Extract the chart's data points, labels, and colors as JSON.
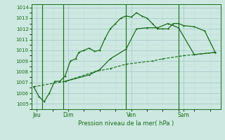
{
  "background_color": "#cce8e0",
  "grid_major_color": "#aacccc",
  "grid_minor_color": "#c0ddd8",
  "line_color": "#1a6b1a",
  "title": "Pression niveau de la mer( hPa )",
  "ylim": [
    1004.5,
    1014.3
  ],
  "yticks": [
    1005,
    1006,
    1007,
    1008,
    1009,
    1010,
    1011,
    1012,
    1013,
    1014
  ],
  "day_labels": [
    "Jeu",
    "Dim",
    "Ven",
    "Sam"
  ],
  "day_positions": [
    0.5,
    3.5,
    9.5,
    14.5
  ],
  "vline_positions": [
    1.0,
    3.0,
    9.0,
    14.0
  ],
  "xlim": [
    0,
    18
  ],
  "line1_x": [
    0.2,
    0.7,
    1.2,
    1.7,
    2.2,
    2.7,
    3.2,
    3.7,
    4.2,
    4.5,
    5.0,
    5.5,
    6.0,
    6.5,
    7.0,
    7.5,
    8.0,
    8.5,
    9.0,
    9.5,
    10.0,
    10.5,
    11.0,
    11.5,
    12.0,
    12.5,
    13.0,
    13.5,
    14.0,
    14.5,
    15.5,
    16.5,
    17.5
  ],
  "line1_y": [
    1006.6,
    1005.7,
    1005.2,
    1006.0,
    1007.1,
    1007.1,
    1007.6,
    1009.0,
    1009.2,
    1009.8,
    1010.0,
    1010.2,
    1009.9,
    1010.0,
    1011.1,
    1012.0,
    1012.5,
    1013.0,
    1013.2,
    1013.1,
    1013.5,
    1013.2,
    1013.0,
    1012.5,
    1012.0,
    1012.0,
    1012.0,
    1012.5,
    1012.5,
    1012.3,
    1012.2,
    1011.8,
    1009.8
  ],
  "line2_x": [
    0.2,
    3.2,
    6.0,
    7.5,
    9.0,
    11.5,
    12.5,
    14.5,
    17.5
  ],
  "line2_y": [
    1006.6,
    1007.1,
    1008.0,
    1008.3,
    1008.7,
    1009.0,
    1009.2,
    1009.5,
    1009.8
  ],
  "line3_x": [
    3.2,
    5.5,
    6.5,
    7.5,
    9.0,
    10.0,
    11.0,
    12.0,
    13.0,
    14.0,
    15.5,
    17.5
  ],
  "line3_y": [
    1007.1,
    1007.7,
    1008.2,
    1009.2,
    1010.1,
    1012.0,
    1012.1,
    1012.1,
    1012.5,
    1012.1,
    1009.6,
    1009.8
  ]
}
